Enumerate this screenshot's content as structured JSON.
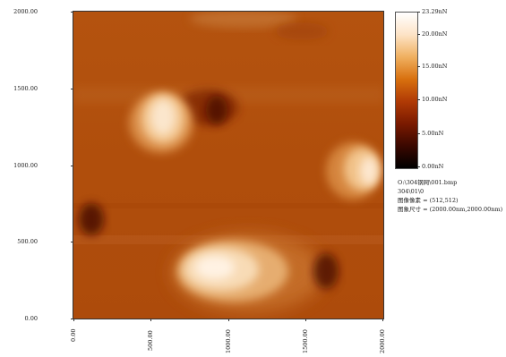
{
  "image": {
    "x_ticks": [
      "0.00",
      "500.00",
      "1000.00",
      "1500.00",
      "2000.00"
    ],
    "y_ticks": [
      "2000.00",
      "1500.00",
      "1000.00",
      "500.00",
      "0.00"
    ]
  },
  "colorbar": {
    "ticks": [
      "23.29nN",
      "20.00nN",
      "15.00nN",
      "10.00nN",
      "5.00nN",
      "0.00nN"
    ],
    "gradient": [
      "#000000",
      "#3a0800",
      "#7a1a00",
      "#b03a05",
      "#d8700e",
      "#f0b060",
      "#fde3c6",
      "#ffffff"
    ]
  },
  "meta": {
    "file": "O:\\304钢网\\001.bmp",
    "id": "304\\01\\0",
    "pixels": "图像像素 = (512,512)",
    "size": "图象尺寸 = (2000.00nm,2000.00nm)"
  }
}
